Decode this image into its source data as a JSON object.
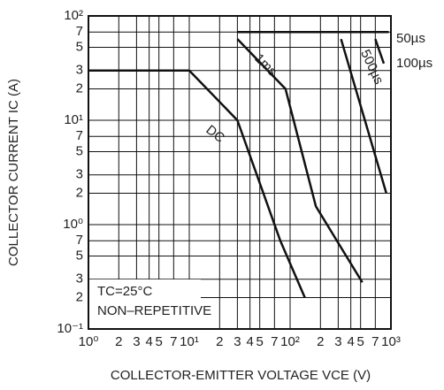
{
  "chart_data": {
    "type": "line",
    "xlabel": "COLLECTOR-EMITTER VOLTAGE   VCE (V)",
    "ylabel": "COLLECTOR CURRENT   IC (A)",
    "xscale": "log",
    "yscale": "log",
    "grid": true,
    "color": "#111111",
    "xlim": [
      1,
      1000
    ],
    "ylim": [
      0.1,
      100
    ],
    "xticks": [
      {
        "value": 1,
        "label": "10⁰"
      },
      2,
      3,
      4,
      5,
      7,
      {
        "value": 10,
        "label": "10¹"
      },
      {
        "value": 20,
        "label": "2"
      },
      {
        "value": 30,
        "label": "3"
      },
      {
        "value": 40,
        "label": "4"
      },
      {
        "value": 50,
        "label": "5"
      },
      {
        "value": 70,
        "label": "7"
      },
      {
        "value": 100,
        "label": "10²"
      },
      {
        "value": 200,
        "label": "2"
      },
      {
        "value": 300,
        "label": "3"
      },
      {
        "value": 400,
        "label": "4"
      },
      {
        "value": 500,
        "label": "5"
      },
      {
        "value": 700,
        "label": "7"
      },
      {
        "value": 1000,
        "label": "10³"
      }
    ],
    "yticks": [
      {
        "value": 0.1,
        "label": "10⁻¹"
      },
      {
        "value": 0.2,
        "label": "2"
      },
      {
        "value": 0.3,
        "label": "3"
      },
      {
        "value": 0.5,
        "label": "5"
      },
      {
        "value": 0.7,
        "label": "7"
      },
      {
        "value": 1,
        "label": "10⁰"
      },
      2,
      3,
      5,
      7,
      {
        "value": 10,
        "label": "10¹"
      },
      {
        "value": 20,
        "label": "2"
      },
      {
        "value": 30,
        "label": "3"
      },
      {
        "value": 50,
        "label": "5"
      },
      {
        "value": 70,
        "label": "7"
      },
      {
        "value": 100,
        "label": "10²"
      }
    ],
    "annotations": [
      "TC=25°C",
      "NON–REPETITIVE"
    ],
    "series": [
      {
        "name": "DC",
        "x": [
          1,
          10,
          30,
          80,
          140
        ],
        "values": [
          30,
          30,
          10,
          0.7,
          0.2
        ]
      },
      {
        "name": "1ms",
        "x": [
          30,
          90,
          180,
          520
        ],
        "values": [
          60,
          20,
          1.5,
          0.28
        ]
      },
      {
        "name": "500µs",
        "x": [
          320,
          900
        ],
        "values": [
          60,
          2
        ]
      },
      {
        "name": "50µs",
        "x": [
          30,
          950
        ],
        "values": [
          70,
          70
        ]
      },
      {
        "name": "100µs",
        "x": [
          700,
          850
        ],
        "values": [
          60,
          35
        ]
      }
    ]
  }
}
